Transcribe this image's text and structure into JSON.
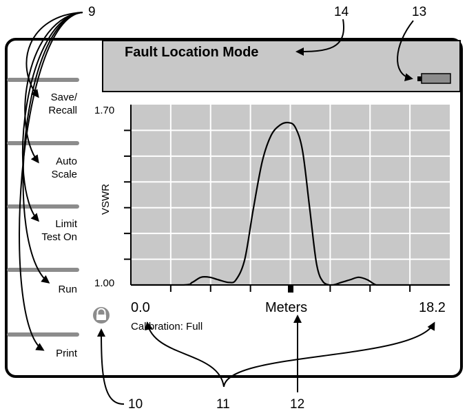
{
  "header": {
    "title": "Fault Location Mode"
  },
  "battery": {
    "icon": "battery-icon"
  },
  "softkeys": [
    {
      "line1": "Save/",
      "line2": "Recall"
    },
    {
      "line1": "Auto",
      "line2": "Scale"
    },
    {
      "line1": "Limit",
      "line2": "Test On"
    },
    {
      "line1": "Run",
      "line2": ""
    },
    {
      "line1": "Print",
      "line2": ""
    }
  ],
  "lock": {
    "icon": "lock-icon"
  },
  "graph": {
    "y_top_label": "1.70",
    "y_bottom_label": "1.00",
    "y_axis_title": "VSWR",
    "x_start_label": "0.0",
    "x_unit_label": "Meters",
    "x_end_label": "18.2",
    "calibration": "Calibration: Full"
  },
  "chart_data": {
    "type": "line",
    "ylabel": "VSWR",
    "xlabel": "Meters",
    "xlim": [
      0.0,
      18.2
    ],
    "ylim": [
      1.0,
      1.7
    ],
    "grid": true,
    "series": [
      {
        "x": [
          0.0,
          3.0,
          3.5,
          4.0,
          4.5,
          5.0,
          5.6,
          6.0,
          6.5,
          7.0,
          7.5,
          8.0,
          8.5,
          9.0,
          9.4,
          9.8,
          10.2,
          10.6,
          11.0,
          11.5,
          12.0,
          12.5,
          13.0,
          13.5,
          14.0,
          14.5,
          15.0,
          18.2
        ],
        "y": [
          1.0,
          1.0,
          1.01,
          1.03,
          1.03,
          1.02,
          1.01,
          1.02,
          1.1,
          1.3,
          1.48,
          1.58,
          1.62,
          1.63,
          1.61,
          1.52,
          1.3,
          1.08,
          1.01,
          1.0,
          1.01,
          1.02,
          1.03,
          1.02,
          1.0,
          1.0,
          1.0,
          1.0
        ]
      }
    ]
  },
  "callouts": [
    "9",
    "10",
    "11",
    "12",
    "13",
    "14"
  ]
}
